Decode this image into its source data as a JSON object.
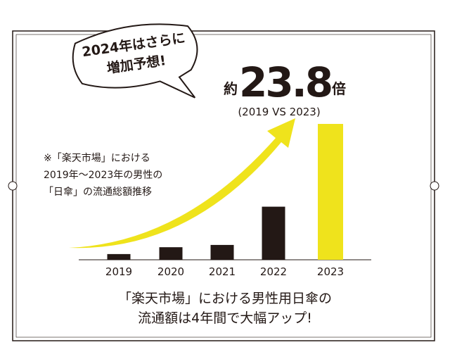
{
  "chart_data": {
    "type": "bar",
    "bubble": [
      "2024年はさらに",
      "増加予想!"
    ],
    "headline": {
      "prefix": "約",
      "value": "23.8",
      "suffix": "倍",
      "sub": "(2019 VS 2023)"
    },
    "note": [
      "※「楽天市場」における",
      "2019年〜2023年の男性の",
      "「日傘」の流通総額推移"
    ],
    "caption": [
      "「楽天市場」における男性用日傘の",
      "流通額は4年間で大幅アップ!"
    ],
    "categories": [
      "2019",
      "2020",
      "2021",
      "2022",
      "2023"
    ],
    "values": [
      1,
      2.2,
      2.6,
      9.3,
      23.8
    ],
    "colors": [
      "#231815",
      "#231815",
      "#231815",
      "#231815",
      "#efe31c"
    ]
  }
}
